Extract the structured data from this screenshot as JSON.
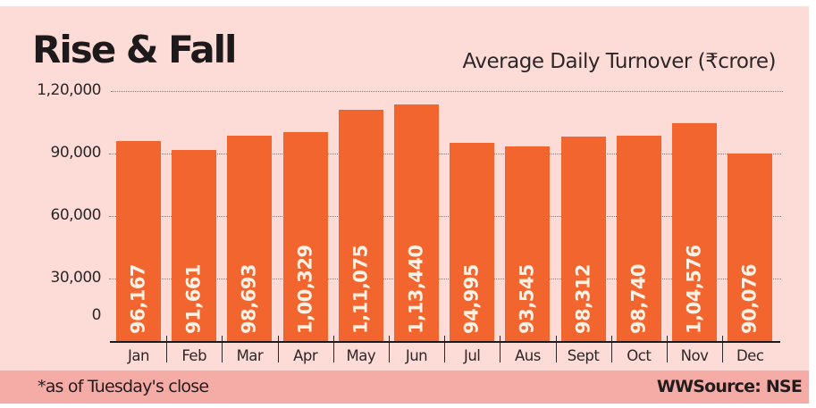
{
  "header": {
    "title": "Rise & Fall",
    "subtitle": "Average Daily Turnover (₹crore)"
  },
  "footer": {
    "note": "*as of Tuesday's close",
    "source": "WWSource: NSE"
  },
  "colors": {
    "background": "#fddcd8",
    "bar": "#f2652f",
    "bar_label": "#fdf2e6",
    "footer_band": "#f5aca6",
    "text": "#231c1d"
  },
  "y_axis": {
    "ticks": [
      "1,20,000",
      "90,000",
      "60,000",
      "30,000",
      "0"
    ]
  },
  "bars": [
    {
      "month": "Jan",
      "label": "96,167"
    },
    {
      "month": "Feb",
      "label": "91,661"
    },
    {
      "month": "Mar",
      "label": "98,693"
    },
    {
      "month": "Apr",
      "label": "1,00,329"
    },
    {
      "month": "May",
      "label": "1,11,075"
    },
    {
      "month": "Jun",
      "label": "1,13,440"
    },
    {
      "month": "Jul",
      "label": "94,995"
    },
    {
      "month": "Aus",
      "label": "93,545"
    },
    {
      "month": "Sept",
      "label": "98,312"
    },
    {
      "month": "Oct",
      "label": "98,740"
    },
    {
      "month": "Nov",
      "label": "1,04,576"
    },
    {
      "month": "Dec",
      "label": "90,076"
    }
  ],
  "chart_data": {
    "type": "bar",
    "title": "Rise & Fall",
    "subtitle": "Average Daily Turnover (₹crore)",
    "xlabel": "",
    "ylabel": "Average Daily Turnover (₹crore)",
    "categories": [
      "Jan",
      "Feb",
      "Mar",
      "Apr",
      "May",
      "Jun",
      "Jul",
      "Aus",
      "Sept",
      "Oct",
      "Nov",
      "Dec"
    ],
    "values": [
      96167,
      91661,
      98693,
      100329,
      111075,
      113440,
      94995,
      93545,
      98312,
      98740,
      104576,
      90076
    ],
    "data_labels": [
      "96,167",
      "91,661",
      "98,693",
      "1,00,329",
      "1,11,075",
      "1,13,440",
      "94,995",
      "93,545",
      "98,312",
      "98,740",
      "1,04,576",
      "90,076"
    ],
    "ylim": [
      0,
      120000
    ],
    "yticks": [
      0,
      30000,
      60000,
      90000,
      120000
    ],
    "ytick_labels": [
      "0",
      "30,000",
      "60,000",
      "90,000",
      "1,20,000"
    ],
    "grid": true,
    "legend": null,
    "annotations": [
      "*as of Tuesday's close",
      "WWSource: NSE"
    ]
  }
}
